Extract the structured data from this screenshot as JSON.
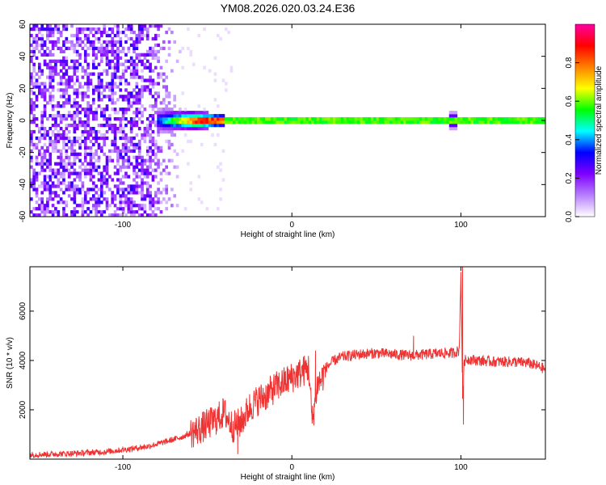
{
  "page": {
    "title": "YM08.2026.020.03.24.E36"
  },
  "chart_data": [
    {
      "type": "heatmap",
      "title": "YM08.2026.020.03.24.E36",
      "xlabel": "Height of straight line (km)",
      "ylabel": "Frequency (Hz)",
      "xlim": [
        -155,
        150
      ],
      "ylim": [
        -60,
        60
      ],
      "x_ticks": [
        -100,
        0,
        100
      ],
      "y_ticks": [
        -60,
        -40,
        -20,
        0,
        20,
        40,
        60
      ],
      "grid": false,
      "colorbar": {
        "label": "Normalized spectral amplitude",
        "ticks": [
          0.0,
          0.2,
          0.4,
          0.6,
          0.8
        ],
        "range": [
          0,
          1
        ],
        "colors": [
          "#ffffff",
          "#b77fff",
          "#7f00ff",
          "#0000ff",
          "#00ffff",
          "#00ff00",
          "#ffff00",
          "#ff8000",
          "#ff0000",
          "#ff00a0"
        ]
      },
      "features": [
        {
          "description_kind": "noise",
          "x_range": [
            -155,
            -65
          ],
          "amplitude": 0.25
        },
        {
          "description_kind": "carrier",
          "frequency": 0,
          "x_range": [
            -80,
            150
          ],
          "amplitude": 1.0
        },
        {
          "description_kind": "spike",
          "x": 95,
          "amplitude": 0.5
        }
      ]
    },
    {
      "type": "line",
      "xlabel": "Height of straight line (km)",
      "ylabel": "SNR (10 * v/v)",
      "xlim": [
        -155,
        150
      ],
      "ylim": [
        0,
        7800
      ],
      "x_ticks": [
        -100,
        0,
        100
      ],
      "y_ticks": [
        2000,
        4000,
        6000
      ],
      "grid": false,
      "series": [
        {
          "color": "#ee3333",
          "x": [
            -155,
            -130,
            -110,
            -95,
            -85,
            -75,
            -65,
            -55,
            -45,
            -40,
            -35,
            -30,
            -25,
            -20,
            -15,
            -10,
            -5,
            0,
            5,
            10,
            12,
            15,
            18,
            20,
            25,
            30,
            35,
            40,
            50,
            60,
            70,
            80,
            90,
            95,
            99,
            100,
            101,
            102,
            105,
            110,
            120,
            130,
            140,
            150
          ],
          "y": [
            180,
            230,
            300,
            420,
            520,
            700,
            900,
            1200,
            1600,
            1900,
            1300,
            1500,
            2100,
            2400,
            2600,
            2900,
            3100,
            3300,
            3500,
            3700,
            1500,
            3000,
            3300,
            3700,
            4000,
            4150,
            4200,
            4250,
            4300,
            4250,
            4200,
            4250,
            4300,
            4300,
            4400,
            7600,
            2500,
            4000,
            4050,
            4000,
            3950,
            3950,
            3900,
            3650
          ],
          "spikes": [
            {
              "x": 101,
              "y": 7800
            },
            {
              "x": 101.5,
              "y": 1400
            },
            {
              "x": -32,
              "y": 200
            },
            {
              "x": 14,
              "y": 4400
            },
            {
              "x": 72,
              "y": 5000
            }
          ]
        }
      ]
    }
  ]
}
